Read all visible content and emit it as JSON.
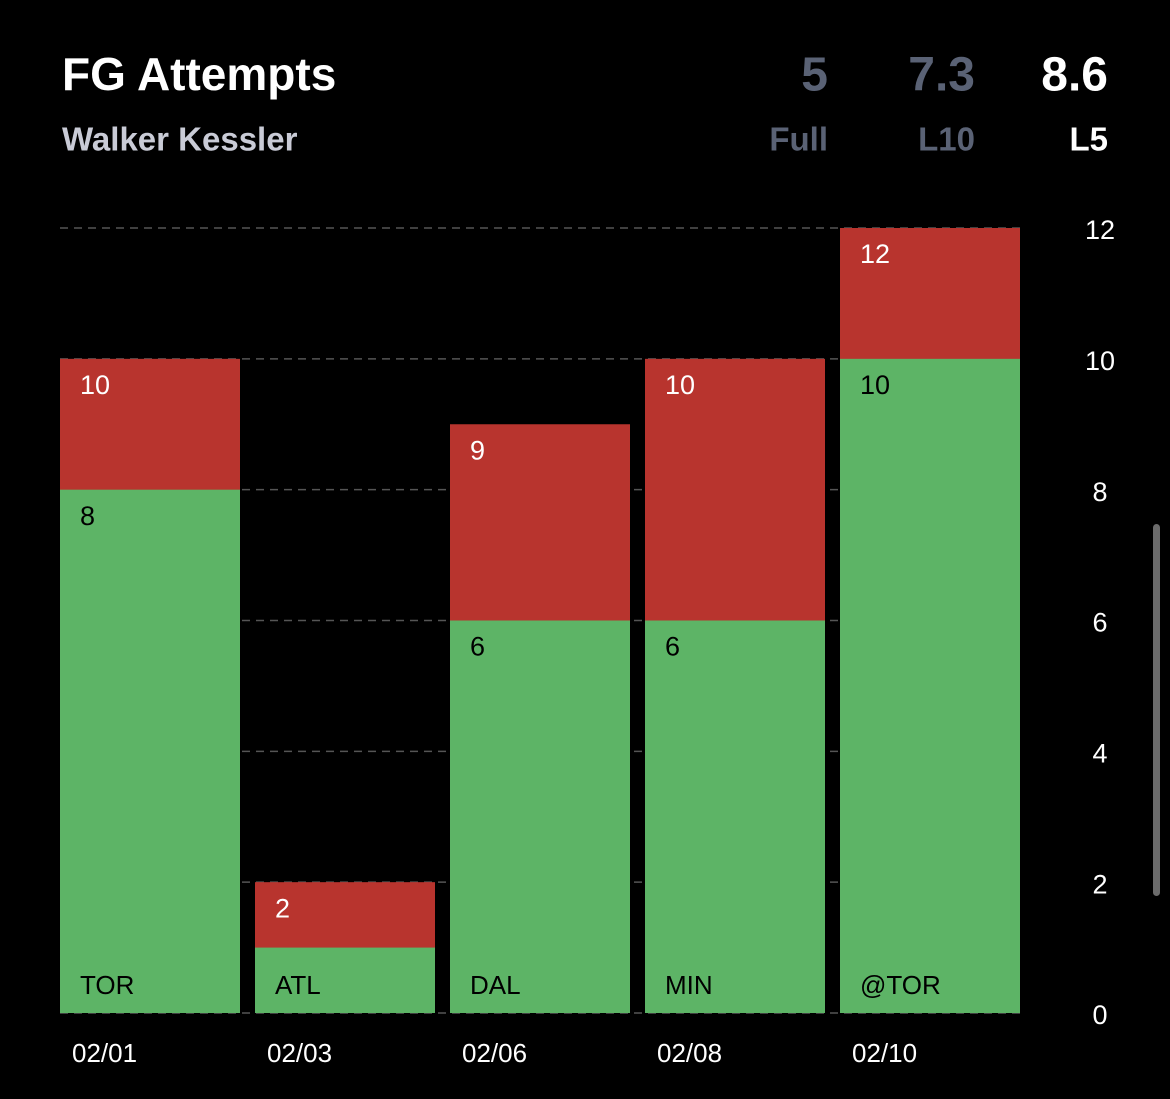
{
  "chart_data": {
    "type": "bar",
    "title": "FG Attempts",
    "subtitle": "Walker Kessler",
    "stats": [
      {
        "value": 5,
        "label": "Full",
        "color": "#5a6275"
      },
      {
        "value": 7.3,
        "label": "L10",
        "color": "#5a6275"
      },
      {
        "value": 8.6,
        "label": "L5",
        "color": "#ffffff"
      }
    ],
    "categories": [
      "02/01",
      "02/03",
      "02/06",
      "02/08",
      "02/10"
    ],
    "opponents": [
      "TOR",
      "ATL",
      "DAL",
      "MIN",
      "@TOR"
    ],
    "series": [
      {
        "color": "#b8342e",
        "label_color": "#ffffff",
        "values": [
          10,
          2,
          9,
          10,
          12
        ]
      },
      {
        "color": "#5db466",
        "label_color": "#000000",
        "values": [
          8,
          1,
          6,
          6,
          10
        ],
        "value_labels": [
          "8",
          null,
          "6",
          "6",
          "10"
        ]
      }
    ],
    "ylim": [
      0,
      12
    ],
    "yticks": [
      0,
      2,
      4,
      6,
      8,
      10,
      12
    ],
    "grid": true
  }
}
